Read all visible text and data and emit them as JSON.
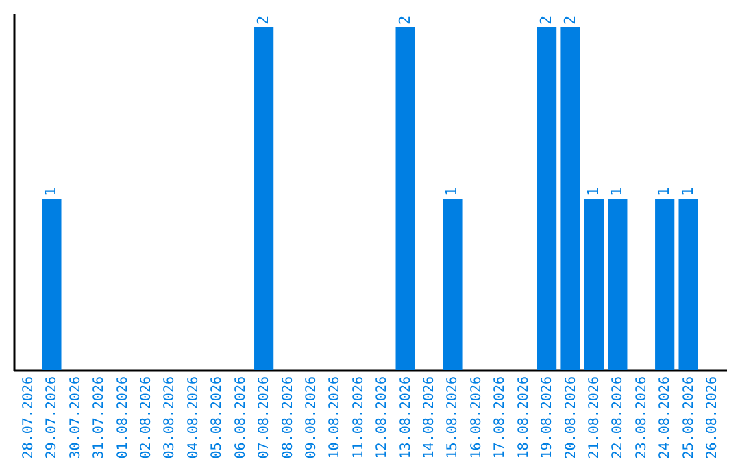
{
  "chart_data": {
    "type": "bar",
    "categories": [
      "28.07.2026",
      "29.07.2026",
      "30.07.2026",
      "31.07.2026",
      "01.08.2026",
      "02.08.2026",
      "03.08.2026",
      "04.08.2026",
      "05.08.2026",
      "06.08.2026",
      "07.08.2026",
      "08.08.2026",
      "09.08.2026",
      "10.08.2026",
      "11.08.2026",
      "12.08.2026",
      "13.08.2026",
      "14.08.2026",
      "15.08.2026",
      "16.08.2026",
      "17.08.2026",
      "18.08.2026",
      "19.08.2026",
      "20.08.2026",
      "21.08.2026",
      "22.08.2026",
      "23.08.2026",
      "24.08.2026",
      "25.08.2026",
      "26.08.2026"
    ],
    "values": [
      0,
      1,
      0,
      0,
      0,
      0,
      0,
      0,
      0,
      0,
      2,
      0,
      0,
      0,
      0,
      0,
      2,
      0,
      1,
      0,
      0,
      0,
      2,
      2,
      1,
      1,
      0,
      1,
      1,
      0
    ],
    "value_labels": [
      null,
      "1",
      null,
      null,
      null,
      null,
      null,
      null,
      null,
      null,
      "2",
      null,
      null,
      null,
      null,
      null,
      "2",
      null,
      "1",
      null,
      null,
      null,
      "2",
      "2",
      "1",
      "1",
      null,
      "1",
      "1",
      null
    ],
    "color": "#007fe3",
    "ylim": [
      0,
      2.08
    ],
    "tick_labels": "x",
    "grid": false
  }
}
